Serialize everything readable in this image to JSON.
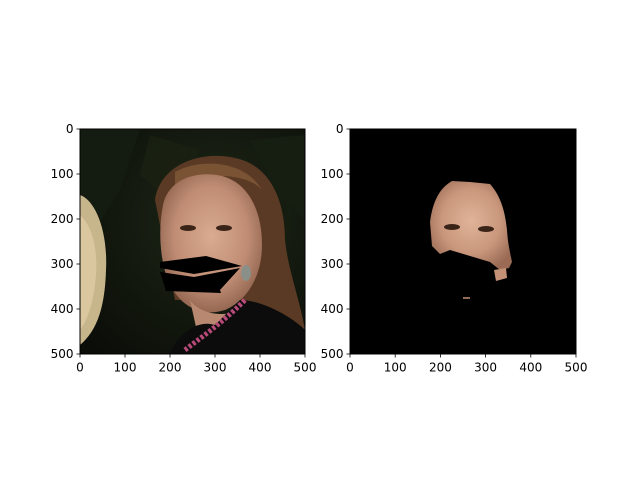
{
  "figure": {
    "background": "#ffffff"
  },
  "chart_data": [
    {
      "type": "image",
      "title": "",
      "xlabel": "",
      "ylabel": "",
      "xlim": [
        0,
        500
      ],
      "ylim": [
        500,
        0
      ],
      "y_inverted": true,
      "grid": false,
      "xticks": [
        "0",
        "100",
        "200",
        "300",
        "400",
        "500"
      ],
      "yticks": [
        "0",
        "100",
        "200",
        "300",
        "400",
        "500"
      ],
      "content": "photo of a woman's face with a black polygon mask covering the mouth and chin region"
    },
    {
      "type": "image",
      "title": "",
      "xlabel": "",
      "ylabel": "",
      "xlim": [
        0,
        500
      ],
      "ylim": [
        500,
        0
      ],
      "y_inverted": true,
      "grid": false,
      "xticks": [
        "0",
        "100",
        "200",
        "300",
        "400",
        "500"
      ],
      "yticks": [
        "0",
        "100",
        "200",
        "300",
        "400",
        "500"
      ],
      "content": "segmented face region on black background; lower face area masked"
    }
  ]
}
